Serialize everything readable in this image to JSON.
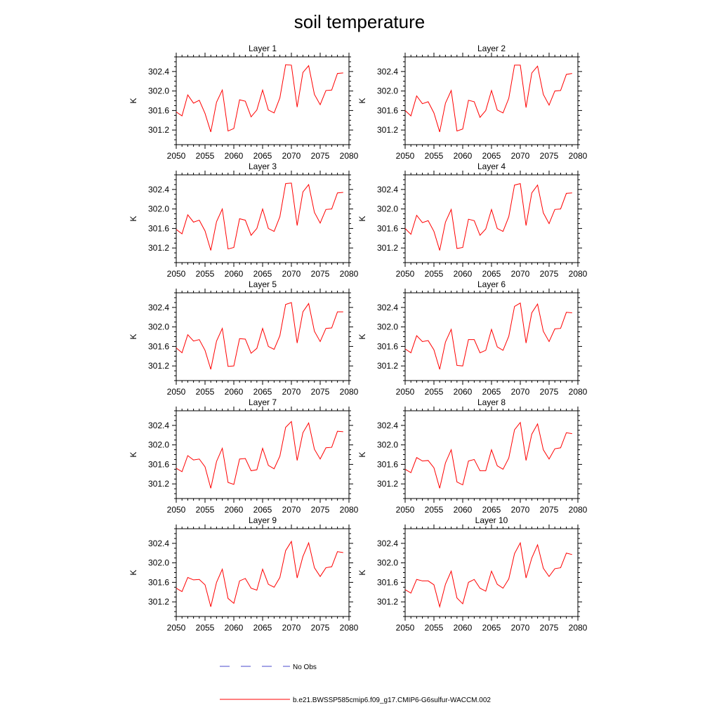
{
  "figure": {
    "title": "soil temperature",
    "legend": [
      {
        "label": "No Obs",
        "color": "#4a4acd",
        "style": "dashed"
      },
      {
        "label": "b.e21.BWSSP585cmip6.f09_g17.CMIP6-G6sulfur-WACCM.002",
        "color": "#ff0000",
        "style": "solid"
      }
    ]
  },
  "chart_data": [
    {
      "type": "line",
      "title": "Layer 1",
      "ylabel": "K",
      "xlim": [
        2050,
        2080
      ],
      "ylim": [
        300.9,
        302.7
      ],
      "xticks": [
        "2050",
        "2055",
        "2060",
        "2065",
        "2070",
        "2075",
        "2080"
      ],
      "yticks": [
        "301.2",
        "301.6",
        "302.0",
        "302.4"
      ],
      "x": [
        2050,
        2051,
        2052,
        2053,
        2054,
        2055,
        2056,
        2057,
        2058,
        2059,
        2060,
        2061,
        2062,
        2063,
        2064,
        2065,
        2066,
        2067,
        2068,
        2069,
        2070,
        2071,
        2072,
        2073,
        2074,
        2075,
        2076,
        2077,
        2078,
        2079
      ],
      "series": [
        {
          "color": "#ff0000",
          "values": [
            301.57,
            301.49,
            301.92,
            301.75,
            301.81,
            301.54,
            301.16,
            301.77,
            302.02,
            301.18,
            301.23,
            301.82,
            301.79,
            301.47,
            301.61,
            302.02,
            301.61,
            301.55,
            301.86,
            302.54,
            302.53,
            301.67,
            302.38,
            302.52,
            301.93,
            301.72,
            302.01,
            302.02,
            302.36,
            302.37
          ]
        }
      ]
    },
    {
      "type": "line",
      "title": "Layer 2",
      "ylabel": "K",
      "xlim": [
        2050,
        2080
      ],
      "ylim": [
        300.9,
        302.7
      ],
      "xticks": [
        "2050",
        "2055",
        "2060",
        "2065",
        "2070",
        "2075",
        "2080"
      ],
      "yticks": [
        "301.2",
        "301.6",
        "302.0",
        "302.4"
      ],
      "x": [
        2050,
        2051,
        2052,
        2053,
        2054,
        2055,
        2056,
        2057,
        2058,
        2059,
        2060,
        2061,
        2062,
        2063,
        2064,
        2065,
        2066,
        2067,
        2068,
        2069,
        2070,
        2071,
        2072,
        2073,
        2074,
        2075,
        2076,
        2077,
        2078,
        2079
      ],
      "series": [
        {
          "color": "#ff0000",
          "values": [
            301.6,
            301.49,
            301.9,
            301.74,
            301.78,
            301.55,
            301.16,
            301.75,
            302.01,
            301.18,
            301.22,
            301.81,
            301.78,
            301.46,
            301.6,
            302.01,
            301.61,
            301.55,
            301.85,
            302.53,
            302.53,
            301.66,
            302.37,
            302.51,
            301.93,
            301.71,
            302.0,
            302.01,
            302.34,
            302.36
          ]
        }
      ]
    },
    {
      "type": "line",
      "title": "Layer 3",
      "ylabel": "K",
      "xlim": [
        2050,
        2080
      ],
      "ylim": [
        300.9,
        302.7
      ],
      "xticks": [
        "2050",
        "2055",
        "2060",
        "2065",
        "2070",
        "2075",
        "2080"
      ],
      "yticks": [
        "301.2",
        "301.6",
        "302.0",
        "302.4"
      ],
      "x": [
        2050,
        2051,
        2052,
        2053,
        2054,
        2055,
        2056,
        2057,
        2058,
        2059,
        2060,
        2061,
        2062,
        2063,
        2064,
        2065,
        2066,
        2067,
        2068,
        2069,
        2070,
        2071,
        2072,
        2073,
        2074,
        2075,
        2076,
        2077,
        2078,
        2079
      ],
      "series": [
        {
          "color": "#ff0000",
          "values": [
            301.58,
            301.49,
            301.88,
            301.73,
            301.77,
            301.55,
            301.15,
            301.74,
            302.0,
            301.18,
            301.21,
            301.8,
            301.77,
            301.46,
            301.6,
            302.0,
            301.6,
            301.54,
            301.84,
            302.52,
            302.53,
            301.66,
            302.35,
            302.5,
            301.93,
            301.71,
            301.99,
            302.0,
            302.33,
            302.34
          ]
        }
      ]
    },
    {
      "type": "line",
      "title": "Layer 4",
      "ylabel": "K",
      "xlim": [
        2050,
        2080
      ],
      "ylim": [
        300.9,
        302.7
      ],
      "xticks": [
        "2050",
        "2055",
        "2060",
        "2065",
        "2070",
        "2075",
        "2080"
      ],
      "yticks": [
        "301.2",
        "301.6",
        "302.0",
        "302.4"
      ],
      "x": [
        2050,
        2051,
        2052,
        2053,
        2054,
        2055,
        2056,
        2057,
        2058,
        2059,
        2060,
        2061,
        2062,
        2063,
        2064,
        2065,
        2066,
        2067,
        2068,
        2069,
        2070,
        2071,
        2072,
        2073,
        2074,
        2075,
        2076,
        2077,
        2078,
        2079
      ],
      "series": [
        {
          "color": "#ff0000",
          "values": [
            301.6,
            301.48,
            301.87,
            301.72,
            301.76,
            301.54,
            301.15,
            301.73,
            301.99,
            301.19,
            301.21,
            301.79,
            301.76,
            301.46,
            301.59,
            301.99,
            301.6,
            301.54,
            301.84,
            302.49,
            302.52,
            301.66,
            302.33,
            302.49,
            301.92,
            301.7,
            301.99,
            302.0,
            302.32,
            302.33
          ]
        }
      ]
    },
    {
      "type": "line",
      "title": "Layer 5",
      "ylabel": "K",
      "xlim": [
        2050,
        2080
      ],
      "ylim": [
        300.9,
        302.7
      ],
      "xticks": [
        "2050",
        "2055",
        "2060",
        "2065",
        "2070",
        "2075",
        "2080"
      ],
      "yticks": [
        "301.2",
        "301.6",
        "302.0",
        "302.4"
      ],
      "x": [
        2050,
        2051,
        2052,
        2053,
        2054,
        2055,
        2056,
        2057,
        2058,
        2059,
        2060,
        2061,
        2062,
        2063,
        2064,
        2065,
        2066,
        2067,
        2068,
        2069,
        2070,
        2071,
        2072,
        2073,
        2074,
        2075,
        2076,
        2077,
        2078,
        2079
      ],
      "series": [
        {
          "color": "#ff0000",
          "values": [
            301.57,
            301.47,
            301.84,
            301.71,
            301.74,
            301.52,
            301.13,
            301.71,
            301.97,
            301.19,
            301.2,
            301.76,
            301.75,
            301.46,
            301.56,
            301.97,
            301.6,
            301.54,
            301.82,
            302.46,
            302.5,
            301.67,
            302.31,
            302.48,
            301.91,
            301.7,
            301.97,
            301.98,
            302.31,
            302.31
          ]
        }
      ]
    },
    {
      "type": "line",
      "title": "Layer 6",
      "ylabel": "K",
      "xlim": [
        2050,
        2080
      ],
      "ylim": [
        300.9,
        302.7
      ],
      "xticks": [
        "2050",
        "2055",
        "2060",
        "2065",
        "2070",
        "2075",
        "2080"
      ],
      "yticks": [
        "301.2",
        "301.6",
        "302.0",
        "302.4"
      ],
      "x": [
        2050,
        2051,
        2052,
        2053,
        2054,
        2055,
        2056,
        2057,
        2058,
        2059,
        2060,
        2061,
        2062,
        2063,
        2064,
        2065,
        2066,
        2067,
        2068,
        2069,
        2070,
        2071,
        2072,
        2073,
        2074,
        2075,
        2076,
        2077,
        2078,
        2079
      ],
      "series": [
        {
          "color": "#ff0000",
          "values": [
            301.55,
            301.47,
            301.82,
            301.7,
            301.72,
            301.53,
            301.13,
            301.69,
            301.95,
            301.21,
            301.2,
            301.74,
            301.74,
            301.47,
            301.52,
            301.95,
            301.59,
            301.52,
            301.81,
            302.42,
            302.49,
            301.67,
            302.29,
            302.47,
            301.91,
            301.7,
            301.96,
            301.97,
            302.3,
            302.29
          ]
        }
      ]
    },
    {
      "type": "line",
      "title": "Layer 7",
      "ylabel": "K",
      "xlim": [
        2050,
        2080
      ],
      "ylim": [
        300.9,
        302.7
      ],
      "xticks": [
        "2050",
        "2055",
        "2060",
        "2065",
        "2070",
        "2075",
        "2080"
      ],
      "yticks": [
        "301.2",
        "301.6",
        "302.0",
        "302.4"
      ],
      "x": [
        2050,
        2051,
        2052,
        2053,
        2054,
        2055,
        2056,
        2057,
        2058,
        2059,
        2060,
        2061,
        2062,
        2063,
        2064,
        2065,
        2066,
        2067,
        2068,
        2069,
        2070,
        2071,
        2072,
        2073,
        2074,
        2075,
        2076,
        2077,
        2078,
        2079
      ],
      "series": [
        {
          "color": "#ff0000",
          "values": [
            301.52,
            301.45,
            301.78,
            301.69,
            301.71,
            301.55,
            301.11,
            301.66,
            301.93,
            301.23,
            301.19,
            301.71,
            301.72,
            301.47,
            301.49,
            301.93,
            301.58,
            301.51,
            301.77,
            302.36,
            302.48,
            301.68,
            302.25,
            302.45,
            301.91,
            301.71,
            301.94,
            301.95,
            302.28,
            302.27
          ]
        }
      ]
    },
    {
      "type": "line",
      "title": "Layer 8",
      "ylabel": "K",
      "xlim": [
        2050,
        2080
      ],
      "ylim": [
        300.9,
        302.7
      ],
      "xticks": [
        "2050",
        "2055",
        "2060",
        "2065",
        "2070",
        "2075",
        "2080"
      ],
      "yticks": [
        "301.2",
        "301.6",
        "302.0",
        "302.4"
      ],
      "x": [
        2050,
        2051,
        2052,
        2053,
        2054,
        2055,
        2056,
        2057,
        2058,
        2059,
        2060,
        2061,
        2062,
        2063,
        2064,
        2065,
        2066,
        2067,
        2068,
        2069,
        2070,
        2071,
        2072,
        2073,
        2074,
        2075,
        2076,
        2077,
        2078,
        2079
      ],
      "series": [
        {
          "color": "#ff0000",
          "values": [
            301.5,
            301.43,
            301.74,
            301.67,
            301.68,
            301.53,
            301.11,
            301.63,
            301.9,
            301.24,
            301.18,
            301.67,
            301.7,
            301.47,
            301.47,
            301.9,
            301.57,
            301.5,
            301.73,
            302.31,
            302.46,
            301.68,
            302.22,
            302.43,
            301.9,
            301.71,
            301.92,
            301.94,
            302.25,
            302.23
          ]
        }
      ]
    },
    {
      "type": "line",
      "title": "Layer 9",
      "ylabel": "K",
      "xlim": [
        2050,
        2080
      ],
      "ylim": [
        300.9,
        302.7
      ],
      "xticks": [
        "2050",
        "2055",
        "2060",
        "2065",
        "2070",
        "2075",
        "2080"
      ],
      "yticks": [
        "301.2",
        "301.6",
        "302.0",
        "302.4"
      ],
      "x": [
        2050,
        2051,
        2052,
        2053,
        2054,
        2055,
        2056,
        2057,
        2058,
        2059,
        2060,
        2061,
        2062,
        2063,
        2064,
        2065,
        2066,
        2067,
        2068,
        2069,
        2070,
        2071,
        2072,
        2073,
        2074,
        2075,
        2076,
        2077,
        2078,
        2079
      ],
      "series": [
        {
          "color": "#ff0000",
          "values": [
            301.48,
            301.41,
            301.7,
            301.65,
            301.66,
            301.55,
            301.1,
            301.6,
            301.87,
            301.27,
            301.17,
            301.63,
            301.68,
            301.48,
            301.44,
            301.87,
            301.56,
            301.5,
            301.7,
            302.25,
            302.44,
            301.69,
            302.13,
            302.41,
            301.9,
            301.72,
            301.9,
            301.92,
            302.23,
            302.21
          ]
        }
      ]
    },
    {
      "type": "line",
      "title": "Layer 10",
      "ylabel": "K",
      "xlim": [
        2050,
        2080
      ],
      "ylim": [
        300.9,
        302.7
      ],
      "xticks": [
        "2050",
        "2055",
        "2060",
        "2065",
        "2070",
        "2075",
        "2080"
      ],
      "yticks": [
        "301.2",
        "301.6",
        "302.0",
        "302.4"
      ],
      "x": [
        2050,
        2051,
        2052,
        2053,
        2054,
        2055,
        2056,
        2057,
        2058,
        2059,
        2060,
        2061,
        2062,
        2063,
        2064,
        2065,
        2066,
        2067,
        2068,
        2069,
        2070,
        2071,
        2072,
        2073,
        2074,
        2075,
        2076,
        2077,
        2078,
        2079
      ],
      "series": [
        {
          "color": "#ff0000",
          "values": [
            301.45,
            301.38,
            301.66,
            301.63,
            301.63,
            301.55,
            301.1,
            301.56,
            301.83,
            301.28,
            301.16,
            301.6,
            301.66,
            301.48,
            301.42,
            301.83,
            301.56,
            301.48,
            301.67,
            302.19,
            302.41,
            301.69,
            302.1,
            302.37,
            301.89,
            301.72,
            301.88,
            301.9,
            302.2,
            302.17
          ]
        }
      ]
    }
  ]
}
